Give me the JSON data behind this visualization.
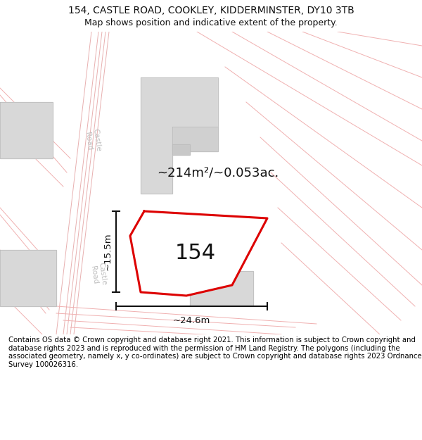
{
  "title_line1": "154, CASTLE ROAD, COOKLEY, KIDDERMINSTER, DY10 3TB",
  "title_line2": "Map shows position and indicative extent of the property.",
  "footer_text": "Contains OS data © Crown copyright and database right 2021. This information is subject to Crown copyright and database rights 2023 and is reproduced with the permission of HM Land Registry. The polygons (including the associated geometry, namely x, y co-ordinates) are subject to Crown copyright and database rights 2023 Ordnance Survey 100026316.",
  "map_bg": "#ffffff",
  "road_line_color": "#f0a0a0",
  "road_line_color2": "#f5c0c0",
  "building_fill": "#d8d8d8",
  "building_edge": "#bbbbbb",
  "red_line_color": "#dd0000",
  "dim_line_color": "#111111",
  "text_color": "#111111",
  "road_text_color": "#b0b0b0",
  "area_label": "~214m²/~0.053ac.",
  "number_label": "154",
  "width_label": "~24.6m",
  "height_label": "~15.5m",
  "road_label": "Castle Road"
}
